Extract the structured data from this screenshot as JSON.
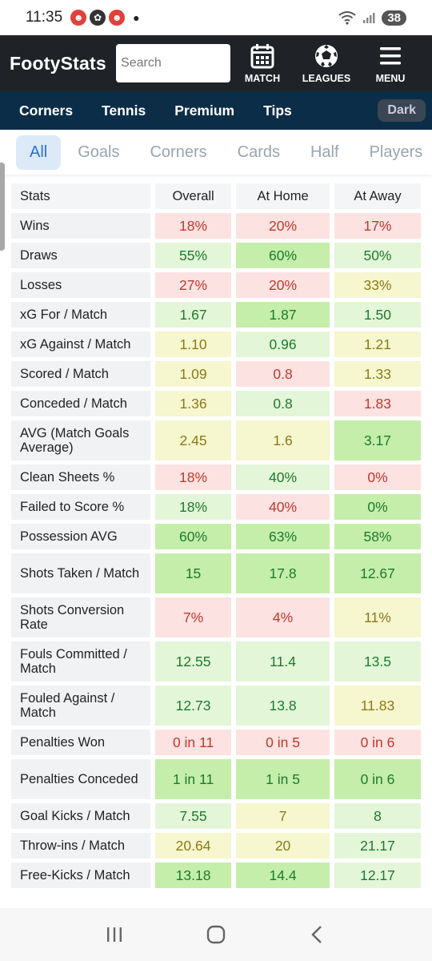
{
  "status": {
    "time": "11:35",
    "battery": "38"
  },
  "header": {
    "logo": "FootyStats",
    "search_placeholder": "Search",
    "nav": [
      {
        "label": "MATCH",
        "icon": "calendar-icon"
      },
      {
        "label": "LEAGUES",
        "icon": "ball-icon"
      },
      {
        "label": "MENU",
        "icon": "hamburger-icon"
      }
    ]
  },
  "subnav": {
    "items": [
      "Corners",
      "Tennis",
      "Premium",
      "Tips"
    ],
    "theme_toggle": "Dark"
  },
  "tabs": [
    "All",
    "Goals",
    "Corners",
    "Cards",
    "Half",
    "Players"
  ],
  "table": {
    "headers": [
      "Stats",
      "Overall",
      "At Home",
      "At Away"
    ],
    "rows": [
      {
        "label": "Wins",
        "values": [
          "18%",
          "20%",
          "17%"
        ]
      },
      {
        "label": "Draws",
        "values": [
          "55%",
          "60%",
          "50%"
        ]
      },
      {
        "label": "Losses",
        "values": [
          "27%",
          "20%",
          "33%"
        ]
      },
      {
        "label": "xG For / Match",
        "values": [
          "1.67",
          "1.87",
          "1.50"
        ]
      },
      {
        "label": "xG Against / Match",
        "values": [
          "1.10",
          "0.96",
          "1.21"
        ]
      },
      {
        "label": "Scored / Match",
        "values": [
          "1.09",
          "0.8",
          "1.33"
        ]
      },
      {
        "label": "Conceded / Match",
        "values": [
          "1.36",
          "0.8",
          "1.83"
        ]
      },
      {
        "label": "AVG (Match Goals Average)",
        "values": [
          "2.45",
          "1.6",
          "3.17"
        ]
      },
      {
        "label": "Clean Sheets %",
        "values": [
          "18%",
          "40%",
          "0%"
        ]
      },
      {
        "label": "Failed to Score %",
        "values": [
          "18%",
          "40%",
          "0%"
        ]
      },
      {
        "label": "Possession AVG",
        "values": [
          "60%",
          "63%",
          "58%"
        ]
      },
      {
        "label": "Shots Taken / Match",
        "values": [
          "15",
          "17.8",
          "12.67"
        ]
      },
      {
        "label": "Shots Conversion Rate",
        "values": [
          "7%",
          "4%",
          "11%"
        ]
      },
      {
        "label": "Fouls Committed / Match",
        "values": [
          "12.55",
          "11.4",
          "13.5"
        ]
      },
      {
        "label": "Fouled Against / Match",
        "values": [
          "12.73",
          "13.8",
          "11.83"
        ]
      },
      {
        "label": "Penalties Won",
        "values": [
          "0 in 11",
          "0 in 5",
          "0 in 6"
        ]
      },
      {
        "label": "Penalties Conceded",
        "values": [
          "1 in 11",
          "1 in 5",
          "0 in 6"
        ]
      },
      {
        "label": "Goal Kicks / Match",
        "values": [
          "7.55",
          "7",
          "8"
        ]
      },
      {
        "label": "Throw-ins / Match",
        "values": [
          "20.64",
          "20",
          "21.17"
        ]
      },
      {
        "label": "Free-Kicks / Match",
        "values": [
          "13.18",
          "14.4",
          "12.17"
        ]
      }
    ]
  },
  "colors": {
    "red": "#fde2e2",
    "light_green": "#e3f6d8",
    "green": "#c4eea9",
    "yellow": "#f6f6cf",
    "header_bg": "#1f2327",
    "subnav_bg": "#0c2d48",
    "active_tab": "#2a6fd6"
  }
}
